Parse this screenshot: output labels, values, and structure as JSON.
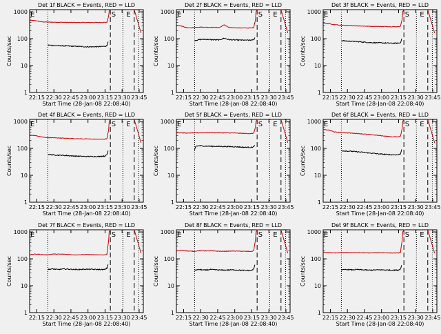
{
  "figure": {
    "xlabel": "Start Time (28-Jan-08 22:08:40)",
    "ylabel": "Counts/sec",
    "xticks": [
      "22:15",
      "22:30",
      "22:45",
      "23:00",
      "23:15",
      "23:30",
      "23:45"
    ],
    "xtick_minutes": [
      6.33,
      21.33,
      36.33,
      51.33,
      66.33,
      81.33,
      96.33
    ],
    "xlim_minutes": [
      0,
      100
    ],
    "yticks": [
      "1",
      "10",
      "100",
      "1000"
    ],
    "ylim": [
      1,
      1200
    ],
    "yscale": "log",
    "colors": {
      "events": "#000000",
      "lld": "#cc0000",
      "background": "#f0f0f0"
    },
    "markers": {
      "dotted_minutes": [
        16,
        82,
        96
      ],
      "dashed_minutes": [
        71,
        92
      ],
      "labels": [
        {
          "text": "S",
          "minute": 72
        },
        {
          "text": "E",
          "minute": 85
        }
      ]
    }
  },
  "chart_data": [
    {
      "type": "line",
      "title": "Det 1f BLACK = Events, RED = LLD",
      "xlabel": "Start Time (28-Jan-08 22:08:40)",
      "ylabel": "Counts/sec",
      "series": [
        {
          "name": "LLD",
          "color": "#cc0000",
          "x": [
            0,
            5,
            8,
            12,
            20,
            30,
            40,
            50,
            60,
            68,
            69.5,
            70,
            71,
            72
          ],
          "y": [
            480,
            470,
            440,
            420,
            410,
            405,
            400,
            400,
            400,
            405,
            700,
            1100,
            1200,
            1200
          ]
        },
        {
          "name": "Events",
          "color": "#000000",
          "x": [
            16,
            20,
            25,
            30,
            40,
            50,
            60,
            66,
            68,
            69
          ],
          "y": [
            58,
            56,
            55,
            54,
            52,
            50,
            50,
            52,
            55,
            78
          ]
        }
      ]
    },
    {
      "type": "line",
      "title": "Det 2f BLACK = Events, RED = LLD",
      "xlabel": "Start Time (28-Jan-08 22:08:40)",
      "ylabel": "Counts/sec",
      "series": [
        {
          "name": "LLD",
          "color": "#cc0000",
          "x": [
            0,
            5,
            10,
            15,
            20,
            30,
            38,
            42,
            46,
            50,
            60,
            66,
            68,
            69.5,
            70,
            71,
            72
          ],
          "y": [
            310,
            290,
            250,
            260,
            270,
            265,
            260,
            330,
            260,
            255,
            250,
            250,
            260,
            500,
            1000,
            1200,
            1200
          ]
        },
        {
          "name": "Events",
          "color": "#000000",
          "x": [
            16,
            20,
            25,
            30,
            38,
            42,
            46,
            50,
            60,
            66,
            68,
            69
          ],
          "y": [
            85,
            92,
            95,
            92,
            90,
            105,
            92,
            90,
            88,
            88,
            92,
            110
          ]
        }
      ]
    },
    {
      "type": "line",
      "title": "Det 3f BLACK = Events, RED = LLD",
      "xlabel": "Start Time (28-Jan-08 22:08:40)",
      "ylabel": "Counts/sec",
      "series": [
        {
          "name": "LLD",
          "color": "#cc0000",
          "x": [
            0,
            5,
            10,
            15,
            20,
            30,
            40,
            50,
            60,
            66,
            68,
            69.5,
            70,
            71,
            72
          ],
          "y": [
            380,
            360,
            330,
            320,
            310,
            300,
            290,
            285,
            280,
            280,
            290,
            550,
            1000,
            1200,
            1200
          ]
        },
        {
          "name": "Events",
          "color": "#000000",
          "x": [
            16,
            20,
            25,
            30,
            40,
            50,
            60,
            66,
            68,
            69
          ],
          "y": [
            85,
            82,
            80,
            78,
            72,
            70,
            68,
            68,
            70,
            100
          ]
        }
      ]
    },
    {
      "type": "line",
      "title": "Det 4f BLACK = Events, RED = LLD",
      "xlabel": "Start Time (28-Jan-08 22:08:40)",
      "ylabel": "Counts/sec",
      "series": [
        {
          "name": "LLD",
          "color": "#cc0000",
          "x": [
            0,
            5,
            10,
            15,
            20,
            30,
            40,
            50,
            60,
            66,
            68,
            69.5,
            70,
            71,
            72
          ],
          "y": [
            310,
            300,
            270,
            250,
            250,
            240,
            230,
            225,
            220,
            220,
            230,
            500,
            1000,
            1200,
            1200
          ]
        },
        {
          "name": "Events",
          "color": "#000000",
          "x": [
            16,
            20,
            25,
            30,
            40,
            50,
            60,
            66,
            68,
            69
          ],
          "y": [
            60,
            58,
            56,
            55,
            52,
            50,
            50,
            52,
            58,
            82
          ]
        }
      ]
    },
    {
      "type": "line",
      "title": "Det 5f BLACK = Events, RED = LLD",
      "xlabel": "Start Time (28-Jan-08 22:08:40)",
      "ylabel": "Counts/sec",
      "series": [
        {
          "name": "LLD",
          "color": "#cc0000",
          "x": [
            0,
            5,
            10,
            15,
            20,
            30,
            40,
            50,
            60,
            66,
            68,
            69.5,
            70,
            71,
            72
          ],
          "y": [
            390,
            380,
            370,
            380,
            380,
            385,
            380,
            375,
            360,
            355,
            370,
            600,
            1000,
            1200,
            1200
          ]
        },
        {
          "name": "Events",
          "color": "#000000",
          "x": [
            16,
            17,
            20,
            25,
            30,
            40,
            50,
            60,
            66,
            68,
            69
          ],
          "y": [
            85,
            120,
            125,
            122,
            120,
            118,
            116,
            110,
            110,
            115,
            130
          ]
        }
      ]
    },
    {
      "type": "line",
      "title": "Det 6f BLACK = Events, RED = LLD",
      "xlabel": "Start Time (28-Jan-08 22:08:40)",
      "ylabel": "Counts/sec",
      "series": [
        {
          "name": "LLD",
          "color": "#cc0000",
          "x": [
            0,
            5,
            10,
            15,
            20,
            30,
            40,
            50,
            60,
            66,
            68,
            69.5,
            70,
            71,
            72
          ],
          "y": [
            500,
            480,
            410,
            390,
            380,
            360,
            330,
            300,
            270,
            270,
            290,
            550,
            1000,
            1200,
            1200
          ]
        },
        {
          "name": "Events",
          "color": "#000000",
          "x": [
            16,
            20,
            25,
            30,
            40,
            50,
            60,
            66,
            68,
            69
          ],
          "y": [
            82,
            80,
            78,
            75,
            68,
            62,
            58,
            58,
            62,
            92
          ]
        }
      ]
    },
    {
      "type": "line",
      "title": "Det 7f BLACK = Events, RED = LLD",
      "xlabel": "Start Time (28-Jan-08 22:08:40)",
      "ylabel": "Counts/sec",
      "series": [
        {
          "name": "LLD",
          "color": "#cc0000",
          "x": [
            0,
            5,
            10,
            15,
            20,
            30,
            40,
            50,
            60,
            66,
            68,
            69.5,
            70,
            71,
            72
          ],
          "y": [
            140,
            150,
            145,
            140,
            150,
            148,
            140,
            145,
            140,
            140,
            150,
            500,
            1000,
            1200,
            1200
          ]
        },
        {
          "name": "Events",
          "color": "#000000",
          "x": [
            16,
            20,
            25,
            30,
            40,
            50,
            60,
            66,
            68,
            69
          ],
          "y": [
            40,
            42,
            40,
            42,
            40,
            41,
            40,
            40,
            45,
            62
          ]
        }
      ]
    },
    {
      "type": "line",
      "title": "Det 8f BLACK = Events, RED = LLD",
      "xlabel": "Start Time (28-Jan-08 22:08:40)",
      "ylabel": "Counts/sec",
      "series": [
        {
          "name": "LLD",
          "color": "#cc0000",
          "x": [
            0,
            5,
            10,
            15,
            20,
            30,
            40,
            50,
            60,
            66,
            68,
            69.5,
            70,
            71,
            72
          ],
          "y": [
            200,
            205,
            195,
            190,
            200,
            198,
            190,
            195,
            190,
            188,
            200,
            500,
            1000,
            1200,
            1200
          ]
        },
        {
          "name": "Events",
          "color": "#000000",
          "x": [
            16,
            20,
            25,
            30,
            40,
            50,
            60,
            66,
            68,
            69
          ],
          "y": [
            38,
            40,
            38,
            40,
            38,
            39,
            37,
            37,
            42,
            60
          ]
        }
      ]
    },
    {
      "type": "line",
      "title": "Det 9f BLACK = Events, RED = LLD",
      "xlabel": "Start Time (28-Jan-08 22:08:40)",
      "ylabel": "Counts/sec",
      "series": [
        {
          "name": "LLD",
          "color": "#cc0000",
          "x": [
            0,
            5,
            10,
            15,
            20,
            30,
            40,
            50,
            60,
            66,
            68,
            69.5,
            70,
            71,
            72
          ],
          "y": [
            175,
            170,
            165,
            170,
            172,
            170,
            165,
            170,
            165,
            165,
            175,
            500,
            1000,
            1200,
            1200
          ]
        },
        {
          "name": "Events",
          "color": "#000000",
          "x": [
            16,
            20,
            25,
            30,
            40,
            50,
            60,
            66,
            68,
            69
          ],
          "y": [
            38,
            40,
            39,
            40,
            38,
            39,
            38,
            38,
            42,
            58
          ]
        }
      ]
    }
  ]
}
